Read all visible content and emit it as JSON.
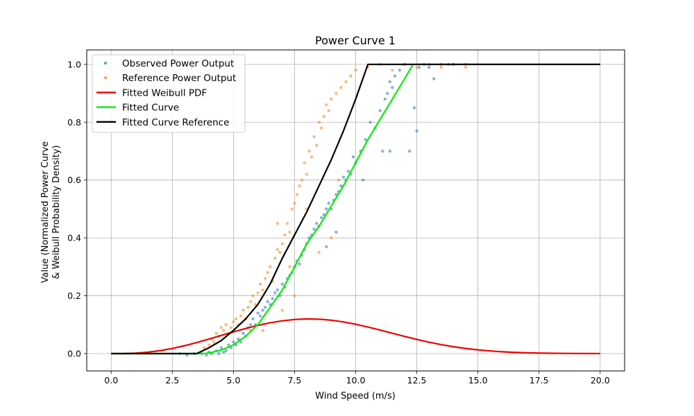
{
  "chart_data": {
    "type": "line",
    "title": "Power Curve 1",
    "xlabel": "Wind Speed (m/s)",
    "ylabel_lines": [
      "Value (Normalized Power Curve",
      "& Weibull Probability Density)"
    ],
    "xlim": [
      -1,
      21
    ],
    "ylim": [
      -0.06,
      1.05
    ],
    "xticks": [
      0.0,
      2.5,
      5.0,
      7.5,
      10.0,
      12.5,
      15.0,
      17.5,
      20.0
    ],
    "xtick_labels": [
      "0.0",
      "2.5",
      "5.0",
      "7.5",
      "10.0",
      "12.5",
      "15.0",
      "17.5",
      "20.0"
    ],
    "yticks": [
      0.0,
      0.2,
      0.4,
      0.6,
      0.8,
      1.0
    ],
    "ytick_labels": [
      "0.0",
      "0.2",
      "0.4",
      "0.6",
      "0.8",
      "1.0"
    ],
    "grid": true,
    "legend_position": "top-left",
    "colors": {
      "observed": "#1f77b4",
      "reference": "#ff7f0e",
      "weibull": "#ee0000",
      "fitted": "#00ee00",
      "fitted_reference": "#000000"
    },
    "series": [
      {
        "name": "Observed Power Output",
        "kind": "scatter",
        "color": "#1f77b4",
        "points": [
          [
            2.8,
            0.0
          ],
          [
            3.1,
            -0.005
          ],
          [
            3.4,
            0.0
          ],
          [
            3.7,
            0.0
          ],
          [
            3.9,
            -0.005
          ],
          [
            4.0,
            0.005
          ],
          [
            4.1,
            0.0
          ],
          [
            4.3,
            0.01
          ],
          [
            4.4,
            0.0
          ],
          [
            4.5,
            0.02
          ],
          [
            4.6,
            0.005
          ],
          [
            4.7,
            0.01
          ],
          [
            4.8,
            0.03
          ],
          [
            4.9,
            0.02
          ],
          [
            5.0,
            0.04
          ],
          [
            5.1,
            0.03
          ],
          [
            5.2,
            0.05
          ],
          [
            5.3,
            0.04
          ],
          [
            5.4,
            0.07
          ],
          [
            5.5,
            0.06
          ],
          [
            5.6,
            0.09
          ],
          [
            5.7,
            0.1
          ],
          [
            5.8,
            0.12
          ],
          [
            5.9,
            0.1
          ],
          [
            6.0,
            0.14
          ],
          [
            6.1,
            0.13
          ],
          [
            6.2,
            0.15
          ],
          [
            6.3,
            0.16
          ],
          [
            6.4,
            0.18
          ],
          [
            6.5,
            0.17
          ],
          [
            6.6,
            0.19
          ],
          [
            6.7,
            0.21
          ],
          [
            6.8,
            0.22
          ],
          [
            6.9,
            0.2
          ],
          [
            7.0,
            0.24
          ],
          [
            7.1,
            0.23
          ],
          [
            7.2,
            0.26
          ],
          [
            7.3,
            0.27
          ],
          [
            7.4,
            0.28
          ],
          [
            7.5,
            0.3
          ],
          [
            7.6,
            0.32
          ],
          [
            7.7,
            0.31
          ],
          [
            7.8,
            0.34
          ],
          [
            7.9,
            0.36
          ],
          [
            8.0,
            0.38
          ],
          [
            8.1,
            0.4
          ],
          [
            8.2,
            0.41
          ],
          [
            8.3,
            0.43
          ],
          [
            8.4,
            0.45
          ],
          [
            8.5,
            0.44
          ],
          [
            8.6,
            0.47
          ],
          [
            8.7,
            0.48
          ],
          [
            8.8,
            0.5
          ],
          [
            8.9,
            0.52
          ],
          [
            9.0,
            0.5
          ],
          [
            9.1,
            0.53
          ],
          [
            9.2,
            0.55
          ],
          [
            9.3,
            0.56
          ],
          [
            9.4,
            0.58
          ],
          [
            9.5,
            0.61
          ],
          [
            9.6,
            0.6
          ],
          [
            9.7,
            0.63
          ],
          [
            9.8,
            0.62
          ],
          [
            9.9,
            0.68
          ],
          [
            10.0,
            0.66
          ],
          [
            10.2,
            0.7
          ],
          [
            10.4,
            0.74
          ],
          [
            10.6,
            0.8
          ],
          [
            10.8,
            0.78
          ],
          [
            11.0,
            0.84
          ],
          [
            11.1,
            0.7
          ],
          [
            11.2,
            0.88
          ],
          [
            11.3,
            0.9
          ],
          [
            11.4,
            0.94
          ],
          [
            11.5,
            0.92
          ],
          [
            11.6,
            0.96
          ],
          [
            11.8,
            0.98
          ],
          [
            12.0,
            1.0
          ],
          [
            12.2,
            0.7
          ],
          [
            12.4,
            0.85
          ],
          [
            12.5,
            0.77
          ],
          [
            12.6,
            0.99
          ],
          [
            12.8,
            1.0
          ],
          [
            13.0,
            0.99
          ],
          [
            13.2,
            0.95
          ],
          [
            13.5,
            1.0
          ],
          [
            13.8,
            1.0
          ],
          [
            14.0,
            1.0
          ],
          [
            14.5,
            1.0
          ],
          [
            9.2,
            0.42
          ],
          [
            8.8,
            0.37
          ],
          [
            10.3,
            0.6
          ],
          [
            11.4,
            0.7
          ]
        ]
      },
      {
        "name": "Reference Power Output",
        "kind": "scatter",
        "color": "#ff7f0e",
        "points": [
          [
            3.8,
            0.02
          ],
          [
            4.0,
            0.03
          ],
          [
            4.1,
            0.05
          ],
          [
            4.2,
            0.04
          ],
          [
            4.3,
            0.07
          ],
          [
            4.4,
            0.06
          ],
          [
            4.5,
            0.09
          ],
          [
            4.6,
            0.08
          ],
          [
            4.7,
            0.1
          ],
          [
            4.8,
            0.07
          ],
          [
            4.9,
            0.09
          ],
          [
            5.0,
            0.11
          ],
          [
            5.1,
            0.12
          ],
          [
            5.2,
            0.1
          ],
          [
            5.3,
            0.13
          ],
          [
            5.4,
            0.15
          ],
          [
            5.5,
            0.12
          ],
          [
            5.6,
            0.16
          ],
          [
            5.7,
            0.18
          ],
          [
            5.8,
            0.2
          ],
          [
            5.9,
            0.17
          ],
          [
            6.0,
            0.21
          ],
          [
            6.1,
            0.24
          ],
          [
            6.2,
            0.22
          ],
          [
            6.3,
            0.26
          ],
          [
            6.4,
            0.28
          ],
          [
            6.5,
            0.3
          ],
          [
            6.6,
            0.25
          ],
          [
            6.7,
            0.33
          ],
          [
            6.8,
            0.36
          ],
          [
            6.9,
            0.35
          ],
          [
            7.0,
            0.38
          ],
          [
            7.1,
            0.41
          ],
          [
            7.2,
            0.45
          ],
          [
            7.3,
            0.42
          ],
          [
            7.4,
            0.5
          ],
          [
            7.5,
            0.52
          ],
          [
            7.6,
            0.55
          ],
          [
            7.7,
            0.58
          ],
          [
            7.8,
            0.6
          ],
          [
            7.9,
            0.66
          ],
          [
            8.0,
            0.62
          ],
          [
            8.1,
            0.7
          ],
          [
            8.2,
            0.68
          ],
          [
            8.3,
            0.75
          ],
          [
            8.4,
            0.72
          ],
          [
            8.5,
            0.8
          ],
          [
            8.6,
            0.78
          ],
          [
            8.7,
            0.82
          ],
          [
            8.8,
            0.86
          ],
          [
            8.9,
            0.84
          ],
          [
            9.0,
            0.88
          ],
          [
            9.2,
            0.9
          ],
          [
            9.4,
            0.92
          ],
          [
            9.6,
            0.94
          ],
          [
            9.8,
            0.96
          ],
          [
            10.0,
            0.98
          ],
          [
            10.5,
            0.99
          ],
          [
            11.0,
            1.0
          ],
          [
            11.5,
            0.98
          ],
          [
            12.0,
            1.0
          ],
          [
            12.5,
            0.99
          ],
          [
            13.0,
            1.0
          ],
          [
            13.5,
            0.99
          ],
          [
            14.0,
            1.0
          ],
          [
            14.5,
            0.99
          ],
          [
            7.5,
            0.2
          ],
          [
            7.0,
            0.15
          ],
          [
            6.2,
            0.08
          ],
          [
            8.5,
            0.35
          ],
          [
            9.0,
            0.4
          ],
          [
            6.8,
            0.45
          ],
          [
            7.3,
            0.3
          ],
          [
            5.7,
            0.08
          ],
          [
            8.0,
            0.5
          ],
          [
            9.3,
            0.6
          ]
        ]
      },
      {
        "name": "Fitted Weibull PDF",
        "kind": "line",
        "color": "#ee0000",
        "points": [
          [
            0.0,
            0.0
          ],
          [
            0.5,
            0.0002
          ],
          [
            1.0,
            0.0015
          ],
          [
            1.5,
            0.0047
          ],
          [
            2.0,
            0.0101
          ],
          [
            2.5,
            0.0177
          ],
          [
            3.0,
            0.0272
          ],
          [
            3.5,
            0.0382
          ],
          [
            4.0,
            0.0502
          ],
          [
            4.5,
            0.0627
          ],
          [
            5.0,
            0.0751
          ],
          [
            5.5,
            0.0868
          ],
          [
            6.0,
            0.0974
          ],
          [
            6.5,
            0.1064
          ],
          [
            7.0,
            0.1133
          ],
          [
            7.5,
            0.1179
          ],
          [
            8.0,
            0.1198
          ],
          [
            8.5,
            0.1189
          ],
          [
            9.0,
            0.1154
          ],
          [
            9.5,
            0.1095
          ],
          [
            10.0,
            0.1015
          ],
          [
            10.5,
            0.0919
          ],
          [
            11.0,
            0.0813
          ],
          [
            11.5,
            0.0702
          ],
          [
            12.0,
            0.0593
          ],
          [
            12.5,
            0.049
          ],
          [
            13.0,
            0.0394
          ],
          [
            13.5,
            0.0309
          ],
          [
            14.0,
            0.0236
          ],
          [
            14.5,
            0.0176
          ],
          [
            15.0,
            0.0128
          ],
          [
            15.5,
            0.0091
          ],
          [
            16.0,
            0.0063
          ],
          [
            16.5,
            0.0042
          ],
          [
            17.0,
            0.0028
          ],
          [
            17.5,
            0.0018
          ],
          [
            18.0,
            0.0011
          ],
          [
            18.5,
            0.0007
          ],
          [
            19.0,
            0.0004
          ],
          [
            19.5,
            0.0002
          ],
          [
            20.0,
            0.0001
          ]
        ]
      },
      {
        "name": "Fitted Curve",
        "kind": "line",
        "color": "#00ee00",
        "points": [
          [
            0.0,
            0.0
          ],
          [
            3.8,
            0.0
          ],
          [
            4.0,
            0.002
          ],
          [
            4.5,
            0.012
          ],
          [
            5.0,
            0.03
          ],
          [
            5.5,
            0.06
          ],
          [
            6.0,
            0.1
          ],
          [
            6.5,
            0.16
          ],
          [
            7.0,
            0.22
          ],
          [
            7.5,
            0.3
          ],
          [
            8.0,
            0.38
          ],
          [
            8.5,
            0.44
          ],
          [
            9.0,
            0.51
          ],
          [
            9.5,
            0.58
          ],
          [
            10.0,
            0.66
          ],
          [
            10.5,
            0.74
          ],
          [
            11.0,
            0.81
          ],
          [
            11.5,
            0.88
          ],
          [
            12.0,
            0.95
          ],
          [
            12.35,
            1.0
          ],
          [
            20.0,
            1.0
          ]
        ]
      },
      {
        "name": "Fitted Curve Reference",
        "kind": "line",
        "color": "#000000",
        "points": [
          [
            0.0,
            0.0
          ],
          [
            3.5,
            0.0
          ],
          [
            4.0,
            0.02
          ],
          [
            4.5,
            0.045
          ],
          [
            5.0,
            0.08
          ],
          [
            5.5,
            0.12
          ],
          [
            6.0,
            0.17
          ],
          [
            6.5,
            0.24
          ],
          [
            7.0,
            0.33
          ],
          [
            7.5,
            0.41
          ],
          [
            8.0,
            0.49
          ],
          [
            8.5,
            0.58
          ],
          [
            9.0,
            0.67
          ],
          [
            9.5,
            0.77
          ],
          [
            10.0,
            0.88
          ],
          [
            10.5,
            1.0
          ],
          [
            20.0,
            1.0
          ]
        ]
      }
    ]
  }
}
